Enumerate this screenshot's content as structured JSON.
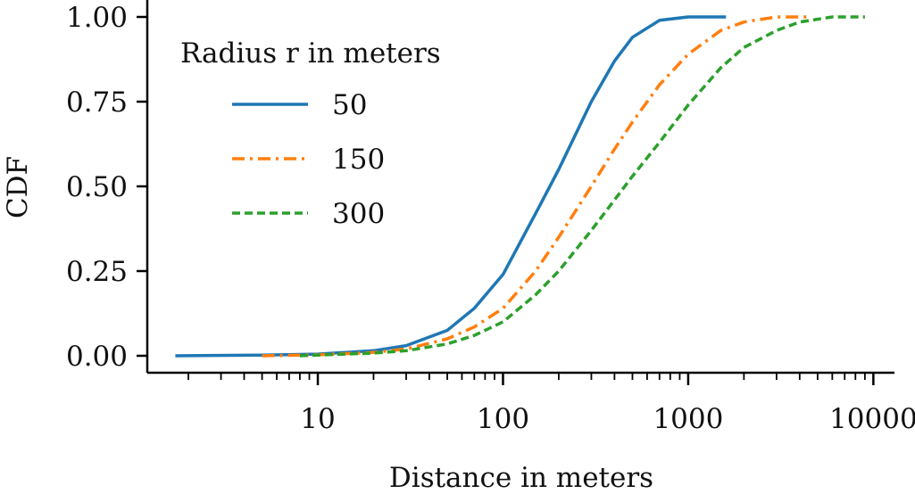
{
  "chart_data": {
    "type": "line",
    "xlabel": "Distance in meters",
    "ylabel": "CDF",
    "xscale": "log",
    "xlim": [
      1.2,
      13000
    ],
    "ylim": [
      -0.05,
      1.05
    ],
    "x_ticks": [
      10,
      100,
      1000,
      10000
    ],
    "x_tick_labels": [
      "10",
      "100",
      "1000",
      "10000"
    ],
    "y_ticks": [
      0.0,
      0.25,
      0.5,
      0.75,
      1.0
    ],
    "y_tick_labels": [
      "0.00",
      "0.25",
      "0.50",
      "0.75",
      "1.00"
    ],
    "grid": false,
    "legend": {
      "title": "Radius r in meters",
      "placement": "top-left"
    },
    "series": [
      {
        "name": "50",
        "color": "#1f77b4",
        "style": "solid",
        "x": [
          1.7,
          5,
          10,
          20,
          30,
          50,
          70,
          100,
          150,
          200,
          300,
          400,
          500,
          700,
          1000,
          1600
        ],
        "y": [
          0.0,
          0.002,
          0.005,
          0.015,
          0.03,
          0.075,
          0.14,
          0.24,
          0.42,
          0.55,
          0.75,
          0.87,
          0.94,
          0.99,
          1.0,
          1.0
        ]
      },
      {
        "name": "150",
        "color": "#ff7f0e",
        "style": "dashdot",
        "x": [
          5,
          10,
          20,
          30,
          50,
          70,
          100,
          150,
          200,
          300,
          400,
          500,
          700,
          1000,
          1500,
          2000,
          3000,
          4500
        ],
        "y": [
          0.0,
          0.003,
          0.01,
          0.02,
          0.05,
          0.085,
          0.14,
          0.25,
          0.35,
          0.5,
          0.61,
          0.69,
          0.8,
          0.89,
          0.96,
          0.985,
          1.0,
          1.0
        ]
      },
      {
        "name": "300",
        "color": "#2ca02c",
        "style": "dashed",
        "x": [
          8,
          10,
          20,
          30,
          50,
          70,
          100,
          150,
          200,
          300,
          400,
          500,
          700,
          1000,
          1500,
          2000,
          3000,
          4000,
          6000,
          9000
        ],
        "y": [
          0.0,
          0.002,
          0.008,
          0.015,
          0.035,
          0.06,
          0.1,
          0.18,
          0.25,
          0.37,
          0.46,
          0.53,
          0.63,
          0.74,
          0.85,
          0.91,
          0.96,
          0.985,
          1.0,
          1.0
        ]
      }
    ]
  }
}
